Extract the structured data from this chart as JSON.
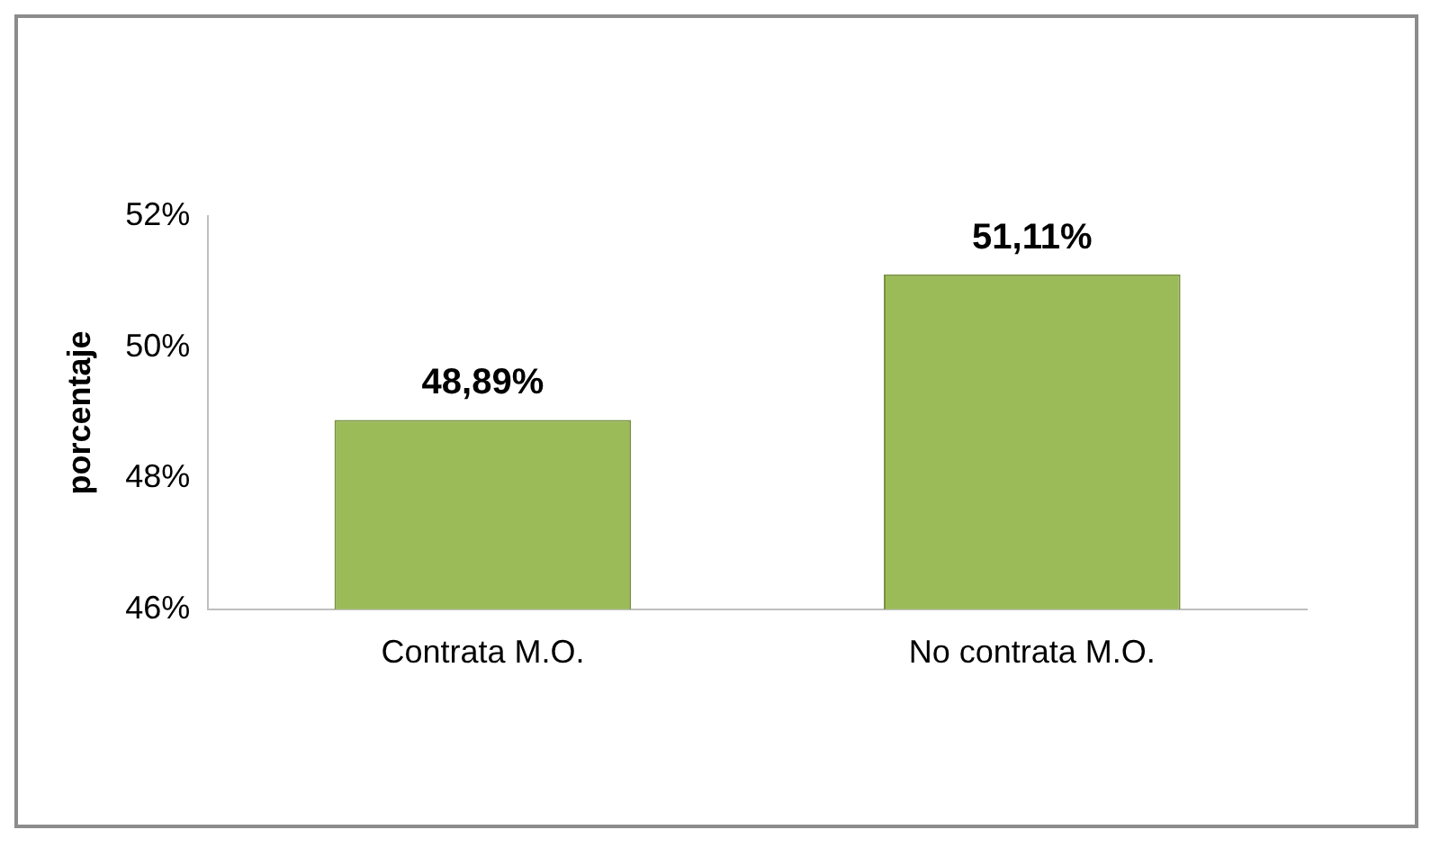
{
  "chart_data": {
    "type": "bar",
    "ylabel": "porcentaje",
    "categories": [
      "Contrata M.O.",
      "No contrata M.O."
    ],
    "values": [
      48.89,
      51.11
    ],
    "color": "#9bbb59",
    "value_labels": [
      "48,89%",
      "51,11%"
    ],
    "ylim": [
      46,
      52
    ],
    "yticks": [
      {
        "value": 46,
        "label": "46%"
      },
      {
        "value": 48,
        "label": "48%"
      },
      {
        "value": 50,
        "label": "50%"
      },
      {
        "value": 52,
        "label": "52%"
      }
    ],
    "grid": false,
    "legend": false
  }
}
